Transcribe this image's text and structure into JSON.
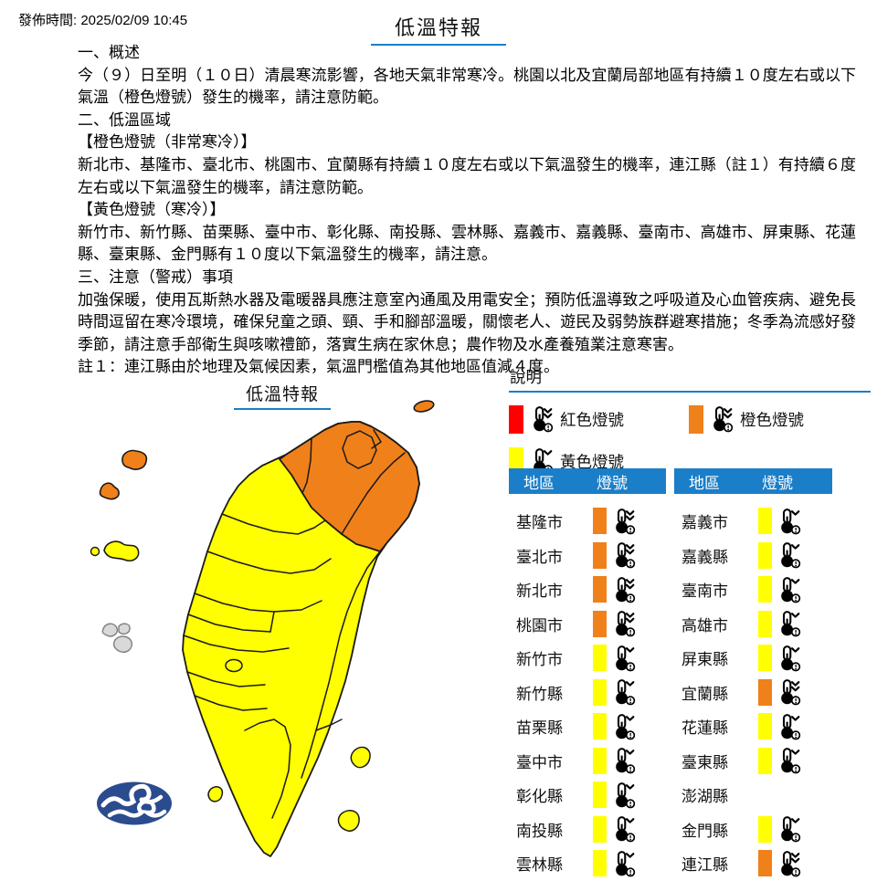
{
  "colors": {
    "blue": "#1B7EC8",
    "red": "#FF0000",
    "orange": "#F08019",
    "yellow": "#FFFF00",
    "island_gray": "#D9D9D9",
    "island_gray_stroke": "#7F7F7F",
    "logo_navy": "#2B4B8F",
    "map_outline": "#1A1A1A"
  },
  "header": {
    "publish_time": "發佈時間: 2025/02/09 10:45",
    "title": "低溫特報"
  },
  "body": {
    "blocks": [
      "一、概述",
      "今（９）日至明（１０日）清晨寒流影響，各地天氣非常寒冷。桃園以北及宜蘭局部地區有持續１０度左右或以下氣溫（橙色燈號）發生的機率，請注意防範。",
      "二、低溫區域",
      "【橙色燈號（非常寒冷）】",
      "新北市、基隆市、臺北市、桃園市、宜蘭縣有持續１０度左右或以下氣溫發生的機率，連江縣（註１）有持續６度左右或以下氣溫發生的機率，請注意防範。",
      "【黃色燈號（寒冷）】",
      "新竹市、新竹縣、苗栗縣、臺中市、彰化縣、南投縣、雲林縣、嘉義市、嘉義縣、臺南市、高雄市、屏東縣、花蓮縣、臺東縣、金門縣有１０度以下氣溫發生的機率，請注意。",
      "三、注意（警戒）事項",
      "加強保暖，使用瓦斯熱水器及電暖器具應注意室內通風及用電安全；預防低溫導致之呼吸道及心血管疾病、避免長時間逗留在寒冷環境，確保兒童之頭、頸、手和腳部溫暖，關懷老人、遊民及弱勢族群避寒措施；冬季為流感好發季節，請注意手部衛生與咳嗽禮節，落實生病在家休息；農作物及水產養殖業注意寒害。",
      "註１：連江縣由於地理及氣候因素，氣溫門檻值為其他地區值減４度。"
    ]
  },
  "map": {
    "title": "低溫特報"
  },
  "legend": {
    "title": "說明",
    "items": [
      {
        "label": "紅色燈號",
        "severity": "red",
        "chevrons": 2
      },
      {
        "label": "橙色燈號",
        "severity": "orange",
        "chevrons": 2
      },
      {
        "label": "黃色燈號",
        "severity": "yellow",
        "chevrons": 1
      }
    ]
  },
  "tables": {
    "headers": {
      "region": "地區",
      "signal": "燈號"
    },
    "left_rows": [
      {
        "region": "基隆市",
        "signal": "orange"
      },
      {
        "region": "臺北市",
        "signal": "orange"
      },
      {
        "region": "新北市",
        "signal": "orange"
      },
      {
        "region": "桃園市",
        "signal": "orange"
      },
      {
        "region": "新竹市",
        "signal": "yellow"
      },
      {
        "region": "新竹縣",
        "signal": "yellow"
      },
      {
        "region": "苗栗縣",
        "signal": "yellow"
      },
      {
        "region": "臺中市",
        "signal": "yellow"
      },
      {
        "region": "彰化縣",
        "signal": "yellow"
      },
      {
        "region": "南投縣",
        "signal": "yellow"
      },
      {
        "region": "雲林縣",
        "signal": "yellow"
      }
    ],
    "right_rows": [
      {
        "region": "嘉義市",
        "signal": "yellow"
      },
      {
        "region": "嘉義縣",
        "signal": "yellow"
      },
      {
        "region": "臺南市",
        "signal": "yellow"
      },
      {
        "region": "高雄市",
        "signal": "yellow"
      },
      {
        "region": "屏東縣",
        "signal": "yellow"
      },
      {
        "region": "宜蘭縣",
        "signal": "orange"
      },
      {
        "region": "花蓮縣",
        "signal": "yellow"
      },
      {
        "region": "臺東縣",
        "signal": "yellow"
      },
      {
        "region": "澎湖縣",
        "signal": "none"
      },
      {
        "region": "金門縣",
        "signal": "yellow"
      },
      {
        "region": "連江縣",
        "signal": "orange"
      }
    ]
  }
}
